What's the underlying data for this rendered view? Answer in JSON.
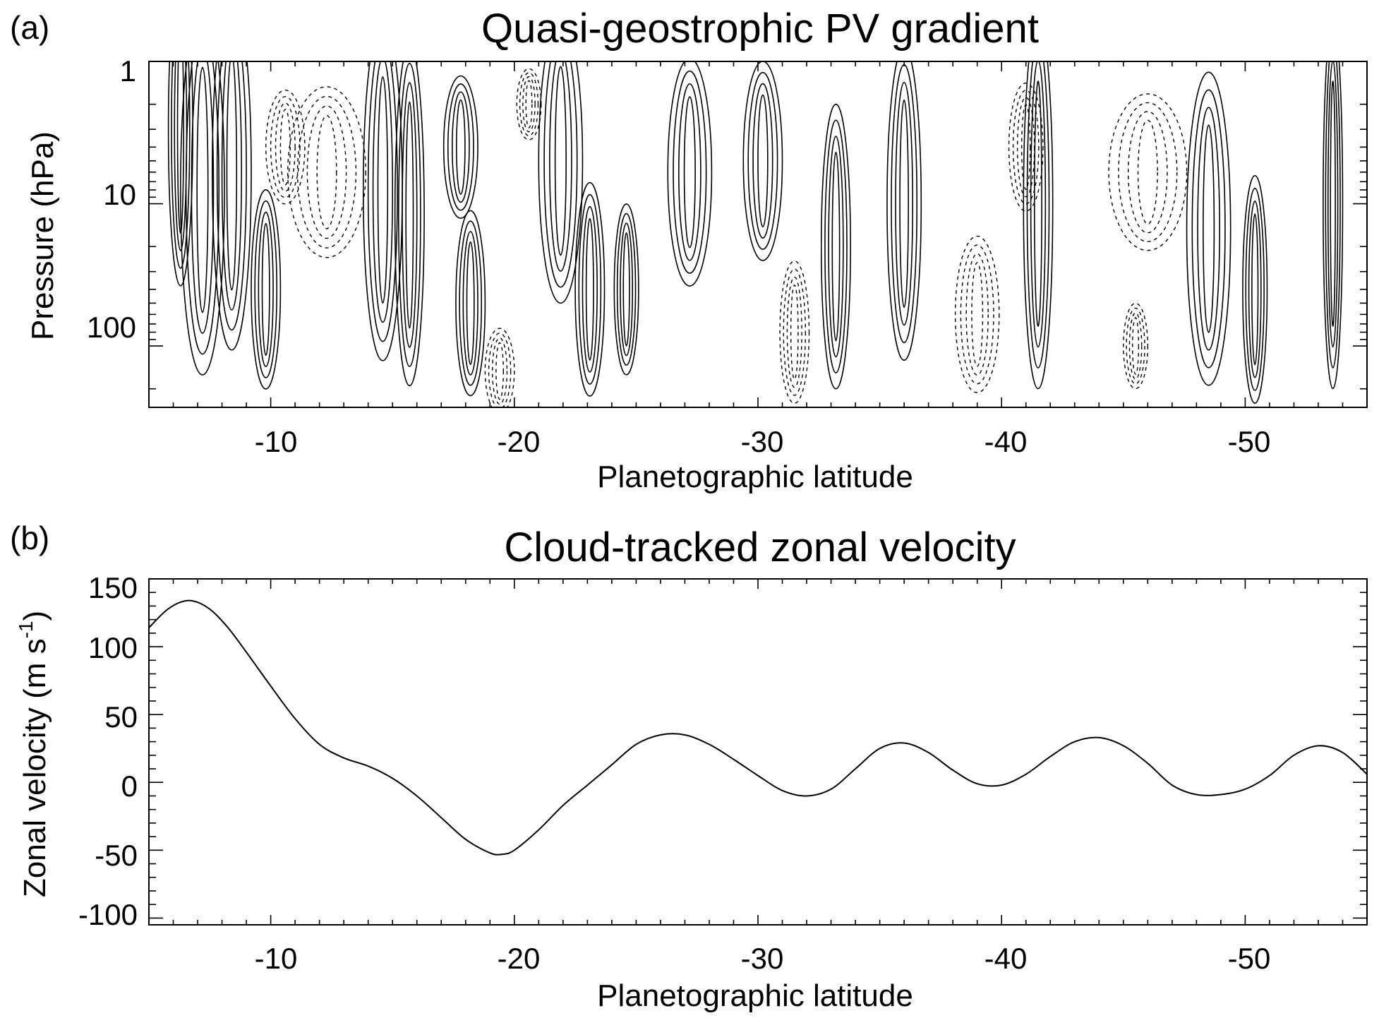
{
  "chart_data": [
    {
      "panel_label": "(a)",
      "type": "contour",
      "title": "Quasi-geostrophic PV gradient",
      "xlabel": "Planetographic latitude",
      "ylabel": "Pressure (hPa)",
      "xlim": [
        -5,
        -55
      ],
      "ylim": [
        1,
        270
      ],
      "yscale": "log",
      "x_ticks": [
        -10,
        -20,
        -30,
        -40,
        -50
      ],
      "x_tick_labels": [
        "-10",
        "-20",
        "-30",
        "-40",
        "-50"
      ],
      "y_ticks": [
        1,
        10,
        100
      ],
      "y_tick_labels": [
        "1",
        "10",
        "100"
      ],
      "solid_contours": [
        {
          "lat": -6.3,
          "p": 3,
          "half_width": 0.5,
          "p_span": 2.2
        },
        {
          "lat": -7.2,
          "p": 8,
          "half_width": 0.9,
          "p_span": 2.6
        },
        {
          "lat": -8.4,
          "p": 6,
          "half_width": 0.8,
          "p_span": 2.5
        },
        {
          "lat": -9.8,
          "p": 40,
          "half_width": 0.6,
          "p_span": 1.4
        },
        {
          "lat": -14.6,
          "p": 8,
          "half_width": 0.8,
          "p_span": 2.4
        },
        {
          "lat": -15.7,
          "p": 12,
          "half_width": 0.6,
          "p_span": 2.4
        },
        {
          "lat": -17.8,
          "p": 4,
          "half_width": 0.7,
          "p_span": 1.0
        },
        {
          "lat": -18.2,
          "p": 50,
          "half_width": 0.6,
          "p_span": 1.3
        },
        {
          "lat": -21.9,
          "p": 5,
          "half_width": 0.9,
          "p_span": 2.0
        },
        {
          "lat": -23.1,
          "p": 40,
          "half_width": 0.6,
          "p_span": 1.5
        },
        {
          "lat": -24.6,
          "p": 40,
          "half_width": 0.5,
          "p_span": 1.2
        },
        {
          "lat": -27.2,
          "p": 6,
          "half_width": 0.9,
          "p_span": 1.6
        },
        {
          "lat": -30.2,
          "p": 5,
          "half_width": 0.8,
          "p_span": 1.4
        },
        {
          "lat": -33.2,
          "p": 20,
          "half_width": 0.6,
          "p_span": 2.0
        },
        {
          "lat": -36.0,
          "p": 10,
          "half_width": 0.7,
          "p_span": 2.2
        },
        {
          "lat": -41.5,
          "p": 10,
          "half_width": 0.6,
          "p_span": 2.6
        },
        {
          "lat": -48.5,
          "p": 15,
          "half_width": 0.9,
          "p_span": 2.2
        },
        {
          "lat": -50.4,
          "p": 40,
          "half_width": 0.5,
          "p_span": 1.6
        },
        {
          "lat": -53.6,
          "p": 10,
          "half_width": 0.4,
          "p_span": 2.6
        }
      ],
      "dashed_contours": [
        {
          "lat": -12.3,
          "p": 6,
          "half_width": 1.6,
          "p_span": 1.2
        },
        {
          "lat": -10.6,
          "p": 4,
          "half_width": 0.8,
          "p_span": 0.8
        },
        {
          "lat": -20.6,
          "p": 2,
          "half_width": 0.5,
          "p_span": 0.5
        },
        {
          "lat": -19.4,
          "p": 150,
          "half_width": 0.6,
          "p_span": 0.6
        },
        {
          "lat": -31.5,
          "p": 80,
          "half_width": 0.6,
          "p_span": 1.0
        },
        {
          "lat": -39.0,
          "p": 60,
          "half_width": 0.9,
          "p_span": 1.1
        },
        {
          "lat": -41.0,
          "p": 4,
          "half_width": 0.7,
          "p_span": 0.9
        },
        {
          "lat": -46.0,
          "p": 6,
          "half_width": 1.6,
          "p_span": 1.1
        },
        {
          "lat": -45.5,
          "p": 100,
          "half_width": 0.5,
          "p_span": 0.6
        }
      ]
    },
    {
      "panel_label": "(b)",
      "type": "line",
      "title": "Cloud-tracked zonal velocity",
      "xlabel": "Planetographic latitude",
      "ylabel": "Zonal velocity (m s",
      "ylabel_superscript": "-1",
      "ylabel_suffix": ")",
      "xlim": [
        -5,
        -55
      ],
      "ylim": [
        -105,
        150
      ],
      "x_ticks": [
        -10,
        -20,
        -30,
        -40,
        -50
      ],
      "x_tick_labels": [
        "-10",
        "-20",
        "-30",
        "-40",
        "-50"
      ],
      "y_ticks": [
        150,
        100,
        50,
        0,
        -50,
        -100
      ],
      "y_tick_labels": [
        "150",
        "100",
        "50",
        "0",
        "-50",
        "-100"
      ],
      "series": [
        {
          "name": "Zonal velocity",
          "x": [
            -5,
            -5.8,
            -6.6,
            -7.4,
            -8.2,
            -9,
            -10,
            -11,
            -12,
            -13,
            -14,
            -15,
            -16,
            -17,
            -18,
            -19,
            -19.5,
            -20,
            -21,
            -22,
            -23,
            -24,
            -25,
            -26,
            -27,
            -28,
            -29,
            -30,
            -31,
            -32,
            -33,
            -34,
            -35,
            -36,
            -37,
            -38,
            -39,
            -40,
            -41,
            -42,
            -43,
            -44,
            -45,
            -46,
            -47,
            -48,
            -49,
            -50,
            -51,
            -52,
            -53,
            -54,
            -55
          ],
          "y": [
            114,
            128,
            134,
            129,
            115,
            96,
            71,
            47,
            28,
            18,
            12,
            3,
            -10,
            -26,
            -42,
            -52,
            -53,
            -50,
            -35,
            -17,
            -2,
            13,
            28,
            35,
            35,
            28,
            17,
            5,
            -6,
            -10,
            -5,
            10,
            25,
            29,
            22,
            9,
            -1,
            -2,
            6,
            19,
            30,
            33,
            27,
            14,
            -2,
            -9,
            -9,
            -5,
            5,
            20,
            27,
            22,
            6
          ]
        }
      ]
    }
  ]
}
